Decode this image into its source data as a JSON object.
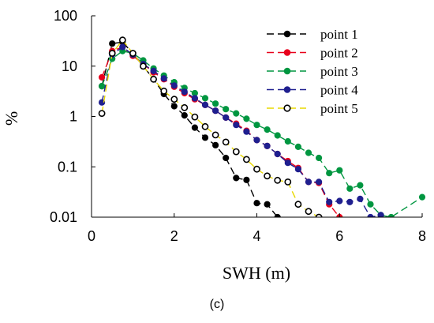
{
  "caption": "(c)",
  "chart_data": {
    "type": "line",
    "xlabel": "SWH (m)",
    "ylabel": "%",
    "xlim": [
      0,
      8
    ],
    "ylim": [
      0.01,
      100
    ],
    "yscale": "log",
    "xticks": [
      0,
      2,
      4,
      6,
      8
    ],
    "xtick_labels": [
      "0",
      "2",
      "4",
      "6",
      "8"
    ],
    "yticks": [
      0.01,
      0.1,
      1,
      10,
      100
    ],
    "ytick_labels": [
      "0.01",
      "0.1",
      "1",
      "10",
      "100"
    ],
    "grid": false,
    "legend_position": "top-right",
    "series": [
      {
        "name": "point 1",
        "color": "#000000",
        "marker_fill": "#000000",
        "x": [
          0.25,
          0.5,
          0.75,
          1.0,
          1.25,
          1.5,
          1.75,
          2.0,
          2.25,
          2.5,
          2.75,
          3.0,
          3.25,
          3.5,
          3.75,
          4.0,
          4.25,
          4.5
        ],
        "y": [
          4,
          28,
          30,
          18,
          10,
          5.5,
          2.8,
          1.6,
          1.05,
          0.6,
          0.38,
          0.27,
          0.15,
          0.06,
          0.055,
          0.019,
          0.018,
          0.01
        ]
      },
      {
        "name": "point 2",
        "color": "#e8001c",
        "marker_fill": "#e8001c",
        "x": [
          0.25,
          0.5,
          0.75,
          1.0,
          1.25,
          1.5,
          1.75,
          2.0,
          2.25,
          2.5,
          2.75,
          3.0,
          3.25,
          3.5,
          3.75,
          4.0,
          4.25,
          4.5,
          4.75,
          5.0,
          5.25,
          5.5,
          5.75,
          6.0
        ],
        "y": [
          6,
          20,
          24,
          16,
          11,
          7.5,
          5.5,
          3.9,
          2.9,
          2.2,
          1.7,
          1.3,
          0.95,
          0.72,
          0.52,
          0.34,
          0.26,
          0.18,
          0.13,
          0.095,
          0.05,
          0.048,
          0.018,
          0.01
        ]
      },
      {
        "name": "point 3",
        "color": "#009640",
        "marker_fill": "#009640",
        "x": [
          0.25,
          0.5,
          0.75,
          1.0,
          1.25,
          1.5,
          1.75,
          2.0,
          2.25,
          2.5,
          2.75,
          3.0,
          3.25,
          3.5,
          3.75,
          4.0,
          4.25,
          4.5,
          4.75,
          5.0,
          5.25,
          5.5,
          5.75,
          6.0,
          6.25,
          6.5,
          6.75,
          7.0,
          7.25,
          8.0
        ],
        "y": [
          4,
          14,
          20,
          18,
          13,
          9,
          6.5,
          4.8,
          3.7,
          2.9,
          2.3,
          1.8,
          1.4,
          1.15,
          0.9,
          0.68,
          0.55,
          0.42,
          0.32,
          0.25,
          0.19,
          0.15,
          0.075,
          0.085,
          0.037,
          0.043,
          0.018,
          0.011,
          0.01,
          0.025
        ]
      },
      {
        "name": "point 4",
        "color": "#1f1f8f",
        "marker_fill": "#1f1f8f",
        "x": [
          0.25,
          0.5,
          0.75,
          1.0,
          1.25,
          1.5,
          1.75,
          2.0,
          2.25,
          2.5,
          2.75,
          3.0,
          3.25,
          3.5,
          3.75,
          4.0,
          4.25,
          4.5,
          4.75,
          5.0,
          5.25,
          5.5,
          5.75,
          6.0,
          6.25,
          6.5,
          6.75,
          7.0
        ],
        "y": [
          1.9,
          17,
          24,
          17,
          11,
          8,
          5.7,
          4.1,
          3.1,
          2.3,
          1.7,
          1.3,
          0.95,
          0.68,
          0.5,
          0.34,
          0.26,
          0.18,
          0.12,
          0.09,
          0.05,
          0.05,
          0.02,
          0.021,
          0.02,
          0.023,
          0.01,
          0.011
        ]
      },
      {
        "name": "point 5",
        "color": "#e8d800",
        "marker_fill": "#ffffff",
        "marker_edge": "#000000",
        "x": [
          0.25,
          0.5,
          0.75,
          1.0,
          1.25,
          1.5,
          1.75,
          2.0,
          2.25,
          2.5,
          2.75,
          3.0,
          3.25,
          3.5,
          3.75,
          4.0,
          4.25,
          4.5,
          4.75,
          5.0,
          5.25,
          5.5
        ],
        "y": [
          1.15,
          18,
          33,
          18,
          10,
          5.5,
          3.2,
          2.2,
          1.5,
          0.98,
          0.63,
          0.43,
          0.31,
          0.2,
          0.14,
          0.09,
          0.066,
          0.054,
          0.05,
          0.018,
          0.013,
          0.01
        ]
      }
    ]
  }
}
